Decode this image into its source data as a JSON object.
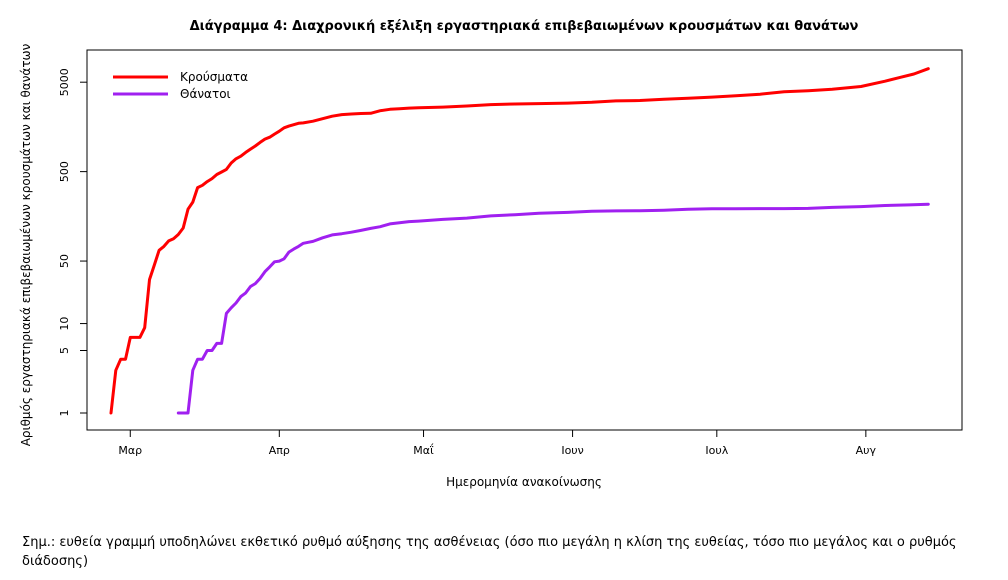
{
  "chart_data": {
    "type": "line",
    "title": "Διάγραμμα 4: Διαχρονική εξέλιξη εργαστηριακά επιβεβαιωμένων κρουσμάτων και θανάτων",
    "xlabel": "Ημερομηνία ανακοίνωσης",
    "ylabel": "Αριθμός εργαστηριακά επιβεβαιωμένων κρουσμάτων και θανάτων",
    "y_scale": "log",
    "ylim": [
      1,
      6500
    ],
    "xlim": [
      "2020-02-21",
      "2020-08-21"
    ],
    "x_ticks": [
      {
        "date": "2020-03-01",
        "label": "Μαρ"
      },
      {
        "date": "2020-04-01",
        "label": "Απρ"
      },
      {
        "date": "2020-05-01",
        "label": "Μαΐ"
      },
      {
        "date": "2020-06-01",
        "label": "Ιουν"
      },
      {
        "date": "2020-07-01",
        "label": "Ιουλ"
      },
      {
        "date": "2020-08-01",
        "label": "Αυγ"
      }
    ],
    "y_ticks": [
      1,
      5,
      10,
      50,
      500,
      5000
    ],
    "grid": false,
    "legend_position": "top-left",
    "series": [
      {
        "name": "Κρούσματα",
        "color": "#ff0000",
        "points": [
          [
            "2020-02-26",
            1
          ],
          [
            "2020-02-27",
            3
          ],
          [
            "2020-02-28",
            4
          ],
          [
            "2020-02-29",
            4
          ],
          [
            "2020-03-01",
            7
          ],
          [
            "2020-03-02",
            7
          ],
          [
            "2020-03-03",
            7
          ],
          [
            "2020-03-04",
            9
          ],
          [
            "2020-03-05",
            31
          ],
          [
            "2020-03-06",
            45
          ],
          [
            "2020-03-07",
            66
          ],
          [
            "2020-03-08",
            73
          ],
          [
            "2020-03-09",
            84
          ],
          [
            "2020-03-10",
            89
          ],
          [
            "2020-03-11",
            99
          ],
          [
            "2020-03-12",
            117
          ],
          [
            "2020-03-13",
            190
          ],
          [
            "2020-03-14",
            228
          ],
          [
            "2020-03-15",
            331
          ],
          [
            "2020-03-16",
            352
          ],
          [
            "2020-03-17",
            387
          ],
          [
            "2020-03-18",
            418
          ],
          [
            "2020-03-19",
            464
          ],
          [
            "2020-03-20",
            495
          ],
          [
            "2020-03-21",
            530
          ],
          [
            "2020-03-22",
            624
          ],
          [
            "2020-03-23",
            695
          ],
          [
            "2020-03-24",
            743
          ],
          [
            "2020-03-25",
            821
          ],
          [
            "2020-03-26",
            892
          ],
          [
            "2020-03-27",
            966
          ],
          [
            "2020-03-28",
            1061
          ],
          [
            "2020-03-29",
            1156
          ],
          [
            "2020-03-30",
            1212
          ],
          [
            "2020-03-31",
            1314
          ],
          [
            "2020-04-01",
            1415
          ],
          [
            "2020-04-02",
            1544
          ],
          [
            "2020-04-03",
            1613
          ],
          [
            "2020-04-04",
            1673
          ],
          [
            "2020-04-05",
            1735
          ],
          [
            "2020-04-06",
            1755
          ],
          [
            "2020-04-08",
            1832
          ],
          [
            "2020-04-10",
            1955
          ],
          [
            "2020-04-12",
            2081
          ],
          [
            "2020-04-14",
            2170
          ],
          [
            "2020-04-16",
            2207
          ],
          [
            "2020-04-18",
            2235
          ],
          [
            "2020-04-20",
            2245
          ],
          [
            "2020-04-22",
            2401
          ],
          [
            "2020-04-24",
            2490
          ],
          [
            "2020-04-26",
            2517
          ],
          [
            "2020-04-28",
            2566
          ],
          [
            "2020-04-30",
            2591
          ],
          [
            "2020-05-05",
            2632
          ],
          [
            "2020-05-10",
            2710
          ],
          [
            "2020-05-15",
            2810
          ],
          [
            "2020-05-20",
            2850
          ],
          [
            "2020-05-25",
            2878
          ],
          [
            "2020-05-31",
            2917
          ],
          [
            "2020-06-05",
            2980
          ],
          [
            "2020-06-10",
            3088
          ],
          [
            "2020-06-15",
            3121
          ],
          [
            "2020-06-20",
            3227
          ],
          [
            "2020-06-25",
            3310
          ],
          [
            "2020-06-30",
            3409
          ],
          [
            "2020-07-05",
            3519
          ],
          [
            "2020-07-10",
            3672
          ],
          [
            "2020-07-15",
            3910
          ],
          [
            "2020-07-20",
            4012
          ],
          [
            "2020-07-25",
            4166
          ],
          [
            "2020-07-31",
            4477
          ],
          [
            "2020-08-05",
            5123
          ],
          [
            "2020-08-08",
            5623
          ],
          [
            "2020-08-11",
            6177
          ],
          [
            "2020-08-14",
            7075
          ]
        ]
      },
      {
        "name": "Θάνατοι",
        "color": "#a020f0",
        "points": [
          [
            "2020-03-11",
            1
          ],
          [
            "2020-03-12",
            1
          ],
          [
            "2020-03-13",
            1
          ],
          [
            "2020-03-14",
            3
          ],
          [
            "2020-03-15",
            4
          ],
          [
            "2020-03-16",
            4
          ],
          [
            "2020-03-17",
            5
          ],
          [
            "2020-03-18",
            5
          ],
          [
            "2020-03-19",
            6
          ],
          [
            "2020-03-20",
            6
          ],
          [
            "2020-03-21",
            13
          ],
          [
            "2020-03-22",
            15
          ],
          [
            "2020-03-23",
            17
          ],
          [
            "2020-03-24",
            20
          ],
          [
            "2020-03-25",
            22
          ],
          [
            "2020-03-26",
            26
          ],
          [
            "2020-03-27",
            28
          ],
          [
            "2020-03-28",
            32
          ],
          [
            "2020-03-29",
            38
          ],
          [
            "2020-03-30",
            43
          ],
          [
            "2020-03-31",
            49
          ],
          [
            "2020-04-01",
            50
          ],
          [
            "2020-04-02",
            53
          ],
          [
            "2020-04-03",
            63
          ],
          [
            "2020-04-04",
            68
          ],
          [
            "2020-04-05",
            73
          ],
          [
            "2020-04-06",
            79
          ],
          [
            "2020-04-07",
            81
          ],
          [
            "2020-04-08",
            83
          ],
          [
            "2020-04-10",
            91
          ],
          [
            "2020-04-12",
            98
          ],
          [
            "2020-04-14",
            101
          ],
          [
            "2020-04-16",
            105
          ],
          [
            "2020-04-18",
            110
          ],
          [
            "2020-04-20",
            116
          ],
          [
            "2020-04-22",
            121
          ],
          [
            "2020-04-24",
            130
          ],
          [
            "2020-04-26",
            134
          ],
          [
            "2020-04-28",
            138
          ],
          [
            "2020-04-30",
            140
          ],
          [
            "2020-05-05",
            146
          ],
          [
            "2020-05-10",
            151
          ],
          [
            "2020-05-15",
            160
          ],
          [
            "2020-05-20",
            165
          ],
          [
            "2020-05-25",
            171
          ],
          [
            "2020-05-31",
            175
          ],
          [
            "2020-06-05",
            180
          ],
          [
            "2020-06-10",
            182
          ],
          [
            "2020-06-15",
            183
          ],
          [
            "2020-06-20",
            185
          ],
          [
            "2020-06-25",
            190
          ],
          [
            "2020-06-30",
            192
          ],
          [
            "2020-07-05",
            192
          ],
          [
            "2020-07-10",
            193
          ],
          [
            "2020-07-15",
            193
          ],
          [
            "2020-07-20",
            194
          ],
          [
            "2020-07-25",
            199
          ],
          [
            "2020-07-31",
            203
          ],
          [
            "2020-08-05",
            209
          ],
          [
            "2020-08-10",
            212
          ],
          [
            "2020-08-14",
            216
          ]
        ]
      }
    ]
  },
  "note": "Σημ.: ευθεία γραμμή υποδηλώνει εκθετικό ρυθμό αύξησης της ασθένειας (όσο πιο μεγάλη η κλίση της ευθείας, τόσο πιο μεγάλος και ο ρυθμός διάδοσης)"
}
